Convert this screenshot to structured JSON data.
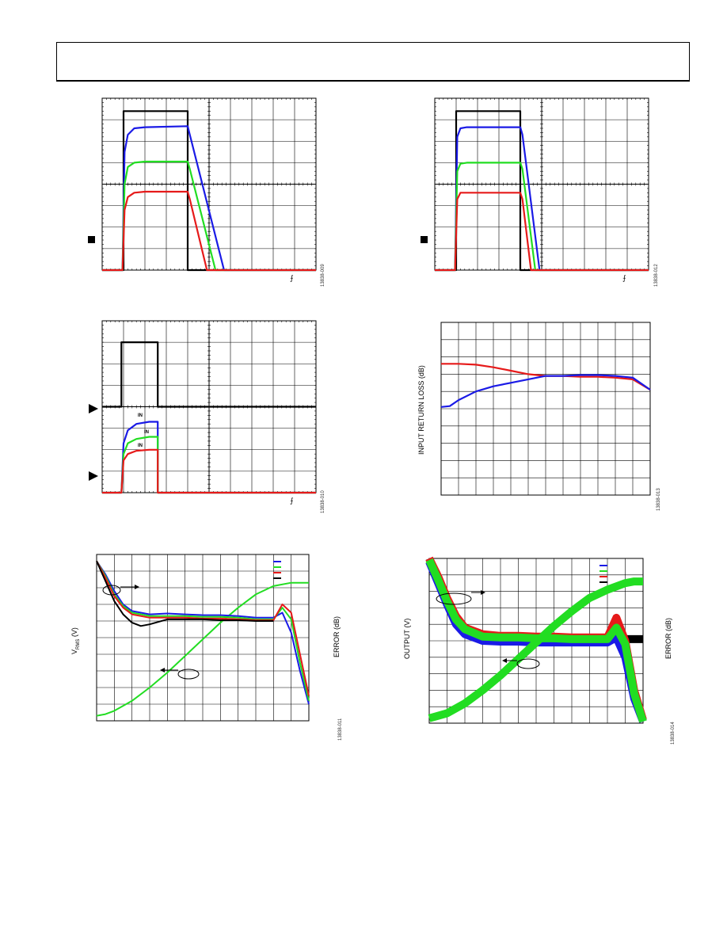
{
  "page": {
    "header": ""
  },
  "figures": [
    {
      "id": "fig-top-left",
      "figure_code": "13838-009",
      "trigger_symbol": "⨍",
      "chart_data": {
        "type": "line",
        "title": "",
        "xlabel": "",
        "ylabel": "",
        "xlim": [
          0,
          10
        ],
        "ylim": [
          0,
          8
        ],
        "grid": true,
        "series": [
          {
            "color": "#000000",
            "x": [
              0,
              1,
              1,
              4,
              4,
              10
            ],
            "y": [
              0,
              0,
              7.4,
              7.4,
              0,
              0
            ]
          },
          {
            "color": "#1a1ae6",
            "x": [
              0,
              0.95,
              1.05,
              1.2,
              1.5,
              2,
              4,
              4.1,
              5.7,
              10
            ],
            "y": [
              0,
              0,
              5.5,
              6.3,
              6.6,
              6.65,
              6.7,
              6.3,
              0,
              0
            ]
          },
          {
            "color": "#22dd22",
            "x": [
              0,
              0.95,
              1.05,
              1.2,
              1.5,
              2,
              4,
              4.1,
              5.3,
              10
            ],
            "y": [
              0,
              0,
              4,
              4.8,
              5,
              5.05,
              5.05,
              4.7,
              0,
              0
            ]
          },
          {
            "color": "#e61a1a",
            "x": [
              0,
              0.95,
              1.05,
              1.2,
              1.5,
              2,
              4,
              4.1,
              4.9,
              10
            ],
            "y": [
              0,
              0,
              2.8,
              3.4,
              3.6,
              3.65,
              3.65,
              3.3,
              0,
              0
            ]
          }
        ]
      }
    },
    {
      "id": "fig-top-right",
      "figure_code": "13838-012",
      "trigger_symbol": "⨍",
      "chart_data": {
        "type": "line",
        "title": "",
        "xlabel": "",
        "ylabel": "",
        "xlim": [
          0,
          10
        ],
        "ylim": [
          0,
          8
        ],
        "grid": true,
        "series": [
          {
            "color": "#000000",
            "x": [
              0,
              1,
              1,
              4,
              4,
              10
            ],
            "y": [
              0,
              0,
              7.4,
              7.4,
              0,
              0
            ]
          },
          {
            "color": "#1a1ae6",
            "x": [
              0,
              0.95,
              1.05,
              1.2,
              1.5,
              4,
              4.1,
              4.9,
              10
            ],
            "y": [
              0,
              0,
              6.2,
              6.6,
              6.65,
              6.65,
              6.3,
              0,
              0
            ]
          },
          {
            "color": "#22dd22",
            "x": [
              0,
              0.95,
              1.05,
              1.2,
              1.5,
              4,
              4.1,
              4.7,
              10
            ],
            "y": [
              0,
              0,
              4.6,
              4.95,
              5,
              5,
              4.7,
              0,
              0
            ]
          },
          {
            "color": "#e61a1a",
            "x": [
              0,
              0.95,
              1.05,
              1.2,
              1.5,
              4,
              4.1,
              4.5,
              10
            ],
            "y": [
              0,
              0,
              3.3,
              3.6,
              3.6,
              3.6,
              3.3,
              0,
              0
            ]
          }
        ]
      }
    },
    {
      "id": "fig-mid-left",
      "figure_code": "13838-010",
      "trigger_symbol": "⨍",
      "trace_tags": [
        "IN",
        "IN",
        "IN"
      ],
      "chart_data": {
        "type": "line",
        "title": "",
        "xlabel": "",
        "ylabel": "",
        "xlim": [
          0,
          10
        ],
        "ylim": [
          0,
          8
        ],
        "grid": true,
        "series": [
          {
            "color": "#000000",
            "x": [
              0,
              0.9,
              0.9,
              2.6,
              2.6,
              10
            ],
            "y": [
              4,
              4,
              7,
              7,
              4,
              4
            ]
          },
          {
            "color": "#1a1ae6",
            "x": [
              0,
              0.9,
              1,
              1.2,
              1.6,
              2.2,
              2.6,
              2.6,
              10
            ],
            "y": [
              0,
              0,
              2.3,
              2.9,
              3.2,
              3.3,
              3.3,
              0,
              0
            ]
          },
          {
            "color": "#22dd22",
            "x": [
              0,
              0.9,
              1,
              1.2,
              1.6,
              2.2,
              2.6,
              2.6,
              10
            ],
            "y": [
              0,
              0,
              1.8,
              2.3,
              2.5,
              2.6,
              2.6,
              0,
              0
            ]
          },
          {
            "color": "#e61a1a",
            "x": [
              0,
              0.9,
              1,
              1.2,
              1.6,
              2.2,
              2.6,
              2.6,
              10
            ],
            "y": [
              0,
              0,
              1.5,
              1.8,
              1.95,
              2,
              2,
              0,
              0
            ]
          }
        ]
      }
    },
    {
      "id": "fig-mid-right",
      "figure_code": "13838-013",
      "ylabel": "INPUT RETURN LOSS (dB)",
      "chart_data": {
        "type": "line",
        "title": "",
        "xlabel": "",
        "ylabel": "INPUT RETURN LOSS (dB)",
        "xlim": [
          0,
          12
        ],
        "ylim": [
          0,
          10
        ],
        "grid": true,
        "series": [
          {
            "color": "#e61a1a",
            "x": [
              0,
              1,
              2,
              3,
              4,
              5,
              6,
              7,
              8,
              9,
              10,
              11,
              12
            ],
            "y": [
              7.6,
              7.6,
              7.55,
              7.4,
              7.2,
              7.0,
              6.9,
              6.9,
              6.85,
              6.85,
              6.8,
              6.7,
              6.1
            ]
          },
          {
            "color": "#1a1ae6",
            "x": [
              0,
              0.5,
              1,
              2,
              3,
              4,
              5,
              6,
              7,
              8,
              9,
              10,
              11,
              12
            ],
            "y": [
              5.1,
              5.15,
              5.5,
              6.0,
              6.3,
              6.5,
              6.7,
              6.9,
              6.9,
              6.95,
              6.95,
              6.9,
              6.8,
              6.1
            ]
          }
        ]
      }
    },
    {
      "id": "fig-bot-left",
      "figure_code": "13838-011",
      "ylabel_left_main": "V",
      "ylabel_left_sub": "RMS",
      "ylabel_left_unit": " (V)",
      "ylabel_right": "ERROR (dB)",
      "legend_colors": [
        "#1a1ae6",
        "#22dd22",
        "#e61a1a",
        "#000000"
      ],
      "chart_data": {
        "type": "line",
        "title": "",
        "xlabel": "",
        "ylabel": "",
        "xlim": [
          0,
          12
        ],
        "ylim": [
          0,
          10
        ],
        "grid": true,
        "series": [
          {
            "color": "#22dd22",
            "x": [
              0,
              0.5,
              1,
              2,
              3,
              4,
              5,
              6,
              7,
              8,
              9,
              10,
              11,
              11.5,
              12
            ],
            "y": [
              0.3,
              0.4,
              0.6,
              1.2,
              2.0,
              2.9,
              3.9,
              4.9,
              5.9,
              6.8,
              7.6,
              8.1,
              8.3,
              8.3,
              8.3
            ]
          },
          {
            "color": "#1a1ae6",
            "x": [
              0,
              0.5,
              1,
              1.5,
              2,
              3,
              4,
              5,
              6,
              7,
              8,
              9,
              10,
              10.5,
              11,
              11.5,
              12
            ],
            "y": [
              9.6,
              8.8,
              7.8,
              7.0,
              6.6,
              6.4,
              6.45,
              6.4,
              6.35,
              6.35,
              6.3,
              6.2,
              6.2,
              6.5,
              5.3,
              3.0,
              1.0
            ]
          },
          {
            "color": "#22dd22",
            "x": [
              0,
              0.5,
              1,
              1.5,
              2,
              3,
              4,
              5,
              6,
              7,
              8,
              9,
              10,
              10.5,
              11,
              11.5,
              12
            ],
            "y": [
              9.6,
              8.7,
              7.6,
              6.9,
              6.5,
              6.3,
              6.3,
              6.3,
              6.25,
              6.25,
              6.2,
              6.1,
              6.1,
              6.8,
              6.1,
              3.5,
              1.2
            ]
          },
          {
            "color": "#e61a1a",
            "x": [
              0,
              0.5,
              1,
              1.5,
              2,
              3,
              4,
              5,
              6,
              7,
              8,
              9,
              10,
              10.5,
              11,
              11.5,
              12
            ],
            "y": [
              9.6,
              8.6,
              7.5,
              6.8,
              6.4,
              6.2,
              6.2,
              6.2,
              6.15,
              6.15,
              6.1,
              6.05,
              6.05,
              7.0,
              6.5,
              4.0,
              1.5
            ]
          },
          {
            "color": "#000000",
            "x": [
              0,
              0.5,
              1,
              1.5,
              2,
              2.5,
              3,
              4,
              5,
              6,
              7,
              8,
              9,
              10
            ],
            "y": [
              9.6,
              8.4,
              7.2,
              6.4,
              5.9,
              5.7,
              5.8,
              6.1,
              6.1,
              6.1,
              6.05,
              6.05,
              6.0,
              6.0
            ]
          }
        ]
      }
    },
    {
      "id": "fig-bot-right",
      "figure_code": "13838-014",
      "ylabel_left": "OUTPUT (V)",
      "ylabel_right": "ERROR (dB)",
      "legend_colors": [
        "#1a1ae6",
        "#22dd22",
        "#e61a1a",
        "#000000"
      ],
      "chart_data": {
        "type": "line",
        "title": "",
        "xlabel": "",
        "ylabel": "OUTPUT (V)",
        "xlim": [
          0,
          12
        ],
        "ylim": [
          0,
          10
        ],
        "grid": true,
        "series": [
          {
            "color": "#000000",
            "x": [
              0,
              0.5,
              1,
              1.5,
              2,
              3,
              4,
              5,
              6,
              7,
              8,
              9,
              10,
              11,
              12
            ],
            "y": [
              10,
              8.8,
              7.4,
              6.2,
              5.5,
              5.1,
              5.1,
              5.1,
              5.1,
              5.1,
              5.1,
              5.1,
              5.1,
              5.1,
              5.1
            ]
          },
          {
            "color": "#e61a1a",
            "x": [
              0,
              0.5,
              1,
              1.5,
              2,
              3,
              4,
              5,
              6,
              7,
              8,
              9,
              10,
              10.5,
              11,
              11.5,
              12
            ],
            "y": [
              10,
              8.9,
              7.6,
              6.5,
              5.8,
              5.4,
              5.3,
              5.3,
              5.25,
              5.25,
              5.2,
              5.2,
              5.2,
              6.4,
              5.0,
              2.0,
              0.2
            ]
          },
          {
            "color": "#1a1ae6",
            "x": [
              0,
              0.5,
              1,
              1.5,
              2,
              3,
              4,
              5,
              6,
              7,
              8,
              9,
              10,
              10.5,
              11,
              11.5,
              12
            ],
            "y": [
              9.8,
              8.5,
              7.2,
              6.0,
              5.4,
              5.0,
              4.95,
              4.95,
              4.9,
              4.9,
              4.9,
              4.9,
              4.9,
              5.2,
              4.0,
              1.5,
              0.1
            ]
          },
          {
            "color": "#22dd22",
            "x": [
              0,
              0.5,
              1,
              1.5,
              2,
              3,
              4,
              5,
              6,
              7,
              8,
              9,
              10,
              10.5,
              11,
              11.5,
              12
            ],
            "y": [
              9.9,
              8.7,
              7.4,
              6.3,
              5.7,
              5.25,
              5.2,
              5.2,
              5.15,
              5.15,
              5.1,
              5.1,
              5.1,
              5.8,
              4.8,
              1.8,
              0.1
            ]
          },
          {
            "color": "#22dd22",
            "x": [
              0,
              1,
              2,
              3,
              4,
              5,
              6,
              7,
              8,
              9,
              10,
              11,
              11.5,
              12
            ],
            "y": [
              0.3,
              0.6,
              1.2,
              2.0,
              2.9,
              3.9,
              4.9,
              5.9,
              6.8,
              7.6,
              8.1,
              8.5,
              8.6,
              8.6
            ]
          }
        ]
      }
    }
  ]
}
